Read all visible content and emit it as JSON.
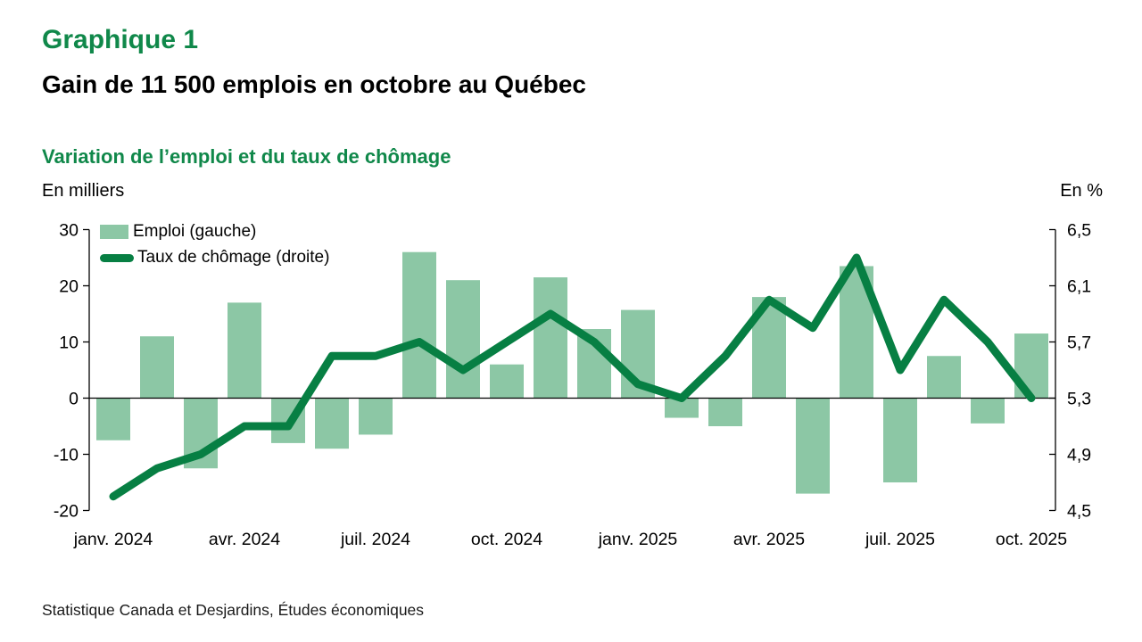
{
  "header": {
    "title": "Graphique 1",
    "subtitle": "Gain de 11 500 emplois en octobre au Québec"
  },
  "section_title": "Variation de l’emploi et du taux de chômage",
  "axis_units": {
    "left": "En milliers",
    "right": "En %"
  },
  "legend": {
    "bar_label": "Emploi (gauche)",
    "line_label": "Taux de chômage (droite)"
  },
  "source": "Statistique Canada et Desjardins, Études économiques",
  "colors": {
    "bar": "#8cc7a5",
    "line": "#077f43",
    "title_green": "#10884a",
    "axis": "#000000"
  },
  "chart_data": {
    "type": "bar+line",
    "title": "Variation de l’emploi et du taux de chômage",
    "categories": [
      "janv. 2024",
      "févr. 2024",
      "mars 2024",
      "avr. 2024",
      "mai 2024",
      "juin 2024",
      "juil. 2024",
      "août 2024",
      "sept. 2024",
      "oct. 2024",
      "nov. 2024",
      "déc. 2024",
      "janv. 2025",
      "févr. 2025",
      "mars 2025",
      "avr. 2025",
      "mai 2025",
      "juin 2025",
      "juil. 2025",
      "août 2025",
      "sept. 2025",
      "oct. 2025"
    ],
    "x_tick_labels": [
      "janv. 2024",
      "avr. 2024",
      "juil. 2024",
      "oct. 2024",
      "janv. 2025",
      "avr. 2025",
      "juil. 2025",
      "oct. 2025"
    ],
    "x_tick_indices": [
      0,
      3,
      6,
      9,
      12,
      15,
      18,
      21
    ],
    "series": [
      {
        "name": "Emploi (gauche)",
        "type": "bar",
        "axis": "left",
        "unit": "milliers",
        "values": [
          -7.5,
          11,
          -12.5,
          17,
          -8,
          -9,
          -6.5,
          26,
          21,
          6,
          21.5,
          12.3,
          15.7,
          -3.5,
          -5,
          18,
          -17,
          23.5,
          -15,
          7.5,
          -4.5,
          11.5
        ]
      },
      {
        "name": "Taux de chômage (droite)",
        "type": "line",
        "axis": "right",
        "unit": "%",
        "values": [
          4.6,
          4.8,
          4.9,
          5.1,
          5.1,
          5.6,
          5.6,
          5.7,
          5.5,
          5.7,
          5.9,
          5.7,
          5.4,
          5.3,
          5.6,
          6.0,
          5.8,
          6.3,
          5.5,
          6.0,
          5.7,
          5.3
        ]
      }
    ],
    "left_axis": {
      "label": "En milliers",
      "ticks": [
        30,
        20,
        10,
        0,
        -10,
        -20
      ],
      "range": [
        -20,
        30
      ]
    },
    "right_axis": {
      "label": "En %",
      "tick_labels": [
        "6,5",
        "6,1",
        "5,7",
        "5,3",
        "4,9",
        "4,5"
      ],
      "ticks": [
        6.5,
        6.1,
        5.7,
        5.3,
        4.9,
        4.5
      ],
      "range": [
        4.5,
        6.5
      ]
    },
    "grid": false,
    "legend_position": "top-left-inside"
  }
}
